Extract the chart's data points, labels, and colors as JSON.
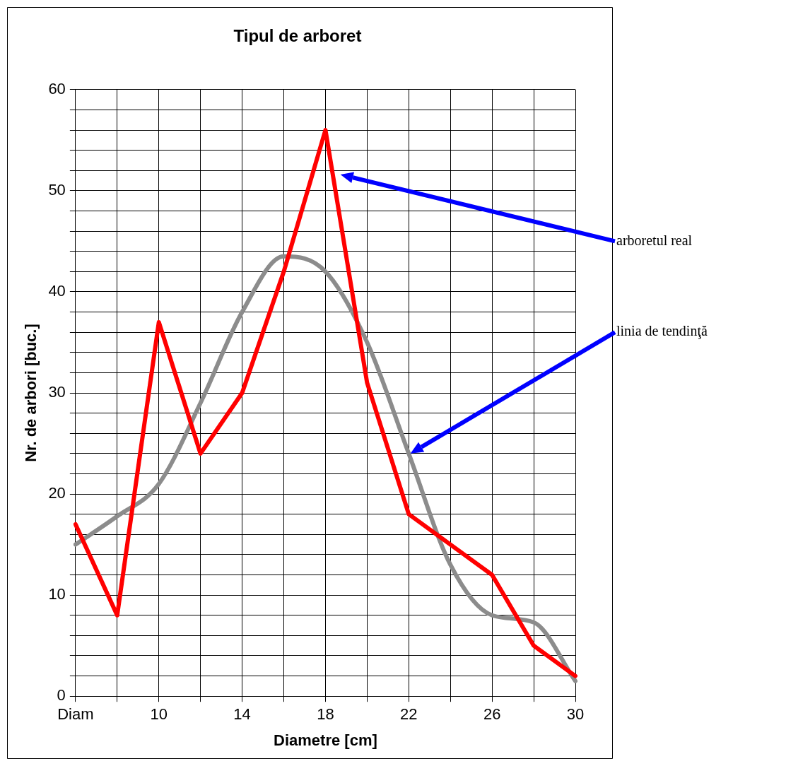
{
  "chart_data": {
    "type": "line",
    "title": "Tipul de arboret",
    "xlabel": "Diametre [cm]",
    "ylabel": "Nr. de arbori [buc.]",
    "categories": [
      "Diam",
      null,
      "10",
      null,
      "14",
      null,
      "18",
      null,
      "22",
      null,
      "26",
      null,
      "30"
    ],
    "series": [
      {
        "color": "#ff0000",
        "values": [
          17,
          8,
          37,
          24,
          30,
          42,
          56,
          31,
          18,
          15,
          12,
          5,
          2
        ]
      },
      {
        "color": "#8c8c8c",
        "values": [
          15,
          17.8,
          21,
          29,
          38,
          43.5,
          42,
          35,
          24,
          13,
          8,
          7.3,
          1.5
        ]
      }
    ],
    "ylim": [
      0,
      60
    ],
    "yticks": [
      0,
      {
        "value": 2,
        "label": null
      },
      {
        "value": 4,
        "label": null
      },
      {
        "value": 6,
        "label": null
      },
      {
        "value": 8,
        "label": null
      },
      10,
      {
        "value": 12,
        "label": null
      },
      {
        "value": 14,
        "label": null
      },
      {
        "value": 16,
        "label": null
      },
      {
        "value": 18,
        "label": null
      },
      20,
      {
        "value": 22,
        "label": null
      },
      {
        "value": 24,
        "label": null
      },
      {
        "value": 26,
        "label": null
      },
      {
        "value": 28,
        "label": null
      },
      30,
      {
        "value": 32,
        "label": null
      },
      {
        "value": 34,
        "label": null
      },
      {
        "value": 36,
        "label": null
      },
      {
        "value": 38,
        "label": null
      },
      40,
      {
        "value": 42,
        "label": null
      },
      {
        "value": 44,
        "label": null
      },
      {
        "value": 46,
        "label": null
      },
      {
        "value": 48,
        "label": null
      },
      50,
      {
        "value": 52,
        "label": null
      },
      {
        "value": 54,
        "label": null
      },
      {
        "value": 56,
        "label": null
      },
      {
        "value": 58,
        "label": null
      },
      60
    ],
    "grid": true,
    "legend": false,
    "marker": "none",
    "line_style": "solid",
    "annotations": [
      "arboretul real",
      "linia de tendinţă"
    ]
  }
}
